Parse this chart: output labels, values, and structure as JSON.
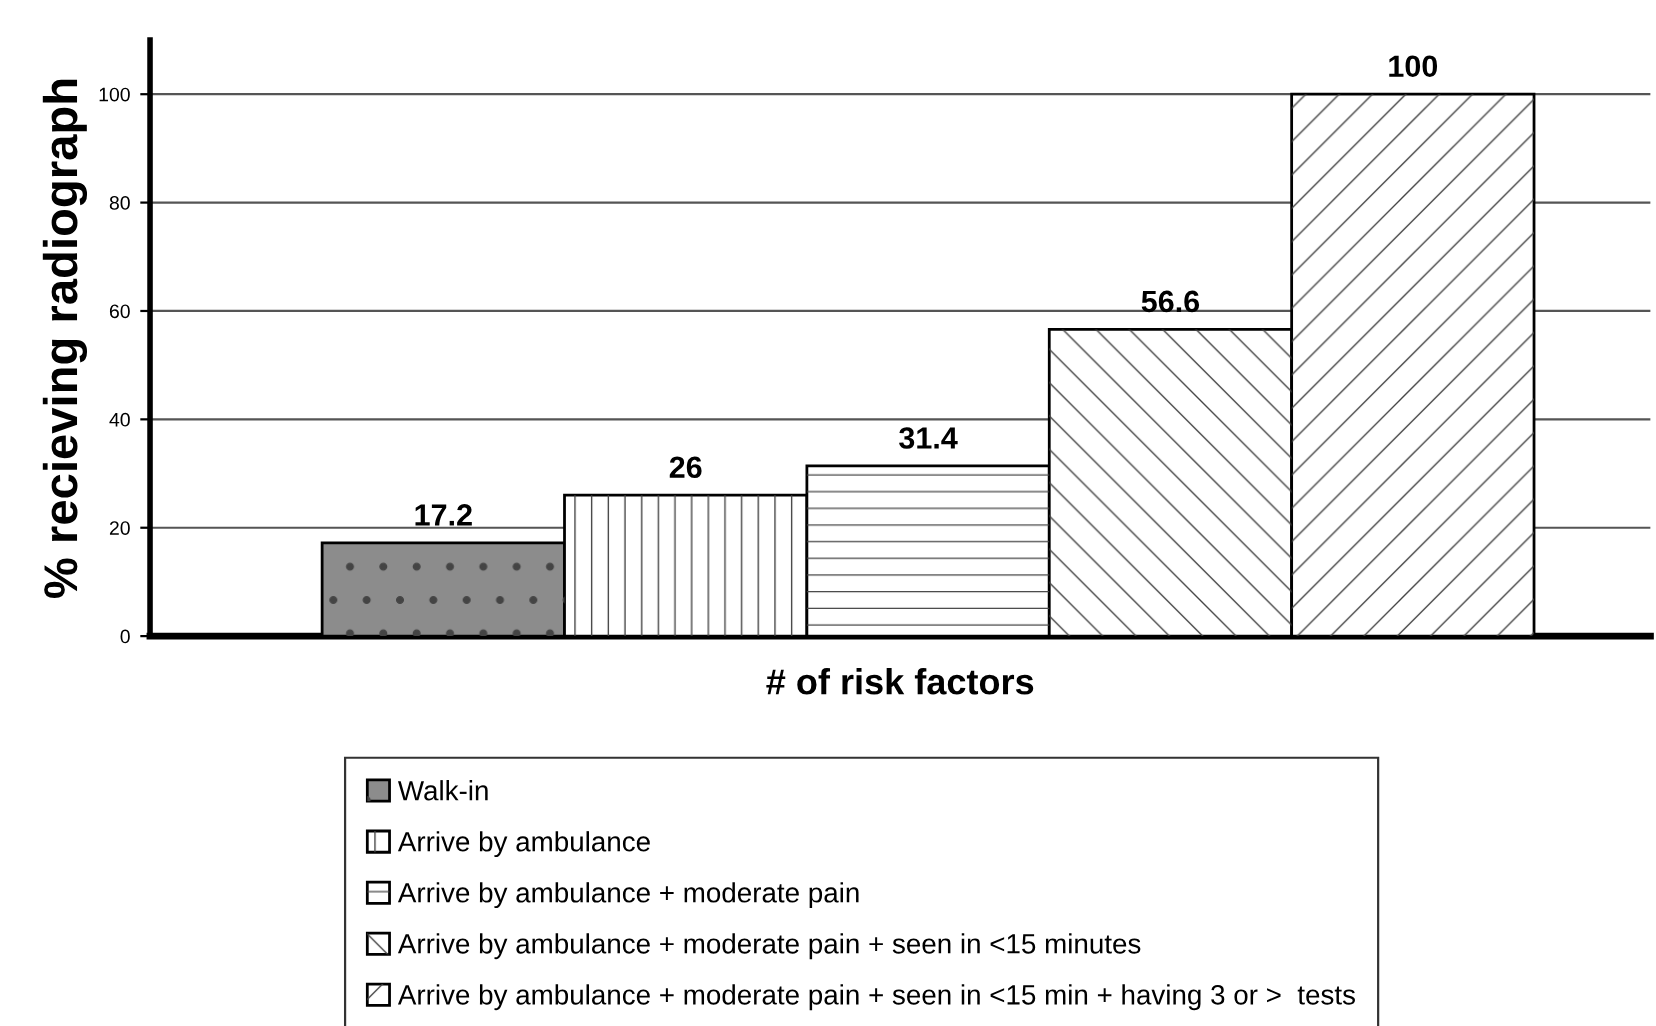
{
  "chart_data": {
    "type": "bar",
    "ylabel": "% recieving radiograph",
    "xlabel": "# of risk factors",
    "categories": [
      null,
      null,
      null,
      null,
      null
    ],
    "series": [
      {
        "name": "Walk-in",
        "color": "#8c8c8c",
        "values": [
          17.2,
          null,
          null,
          null,
          null
        ]
      },
      {
        "name": "Arrive by ambulance",
        "color": "#ffffff",
        "values": [
          null,
          26,
          null,
          null,
          null
        ]
      },
      {
        "name": "Arrive by ambulance + moderate pain",
        "color": "#ffffff",
        "values": [
          null,
          null,
          31.4,
          null,
          null
        ]
      },
      {
        "name": "Arrive by ambulance + moderate pain + seen in <15 minutes",
        "color": "#ffffff",
        "values": [
          null,
          null,
          null,
          56.6,
          null
        ]
      },
      {
        "name": "Arrive by ambulance + moderate pain + seen in <15 min + having 3 or >  tests",
        "color": "#ffffff",
        "values": [
          null,
          null,
          null,
          null,
          100
        ]
      }
    ],
    "ylim": [
      0,
      110
    ],
    "yticks": [
      0,
      20,
      40,
      60,
      80,
      100
    ],
    "grid": "y",
    "legend": "bottom",
    "data_labels": true
  }
}
